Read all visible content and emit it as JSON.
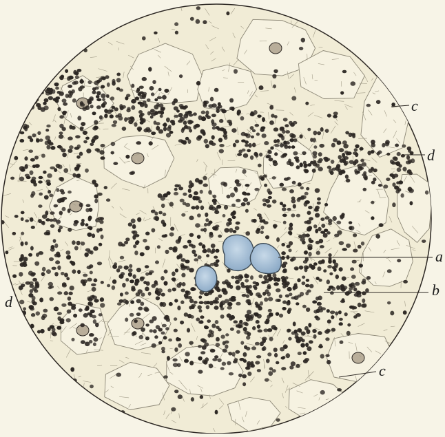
{
  "figure": {
    "labels": {
      "c_top": "c",
      "d_right": "d",
      "a": "a",
      "b": "b",
      "d_left": "d",
      "c_bottom": "c"
    }
  },
  "colors": {
    "background": "#f7f4e7",
    "field": "#f1ecd6",
    "cell_outline": "#8c8776",
    "nucleus": "#2b2622",
    "stain_blue": "#9fb9cf"
  }
}
